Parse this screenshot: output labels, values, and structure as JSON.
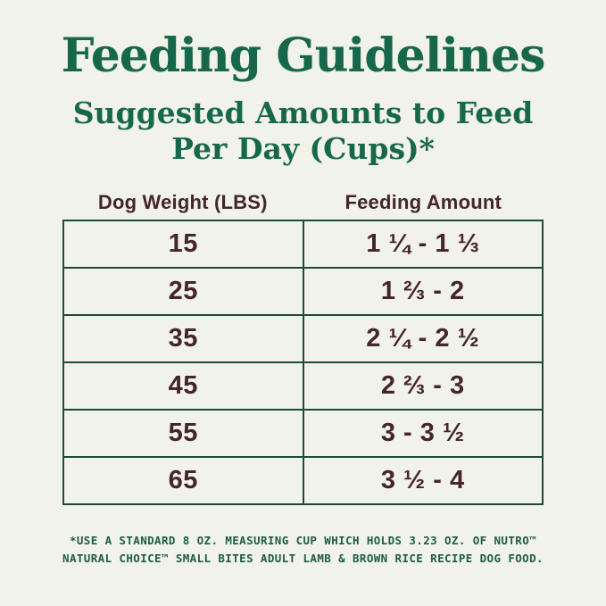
{
  "header": {
    "title": "Feeding Guidelines",
    "subtitle_line1": "Suggested Amounts to Feed",
    "subtitle_line2": "Per Day (Cups)*"
  },
  "chart_data": {
    "type": "table",
    "title": "Feeding Guidelines",
    "subtitle": "Suggested Amounts to Feed Per Day (Cups)*",
    "columns": [
      "Dog Weight (LBS)",
      "Feeding Amount"
    ],
    "rows": [
      [
        "15",
        "1 ¼ - 1 ⅓"
      ],
      [
        "25",
        "1 ⅔ - 2"
      ],
      [
        "35",
        "2 ¼ - 2 ½"
      ],
      [
        "45",
        "2 ⅔ - 3"
      ],
      [
        "55",
        "3 - 3 ½"
      ],
      [
        "65",
        "3 ½ - 4"
      ]
    ]
  },
  "footnote": {
    "line1": "*USE A STANDARD 8 OZ. MEASURING CUP WHICH HOLDS 3.23 OZ. OF NUTRO™",
    "line2": "NATURAL CHOICE™ SMALL BITES ADULT LAMB & BROWN RICE RECIPE DOG FOOD."
  },
  "colors": {
    "background": "#F1F2EA",
    "heading_green": "#17684A",
    "table_border_green": "#1E4B39",
    "cell_text_maroon": "#44252B",
    "footnote_green": "#1D5C43"
  }
}
